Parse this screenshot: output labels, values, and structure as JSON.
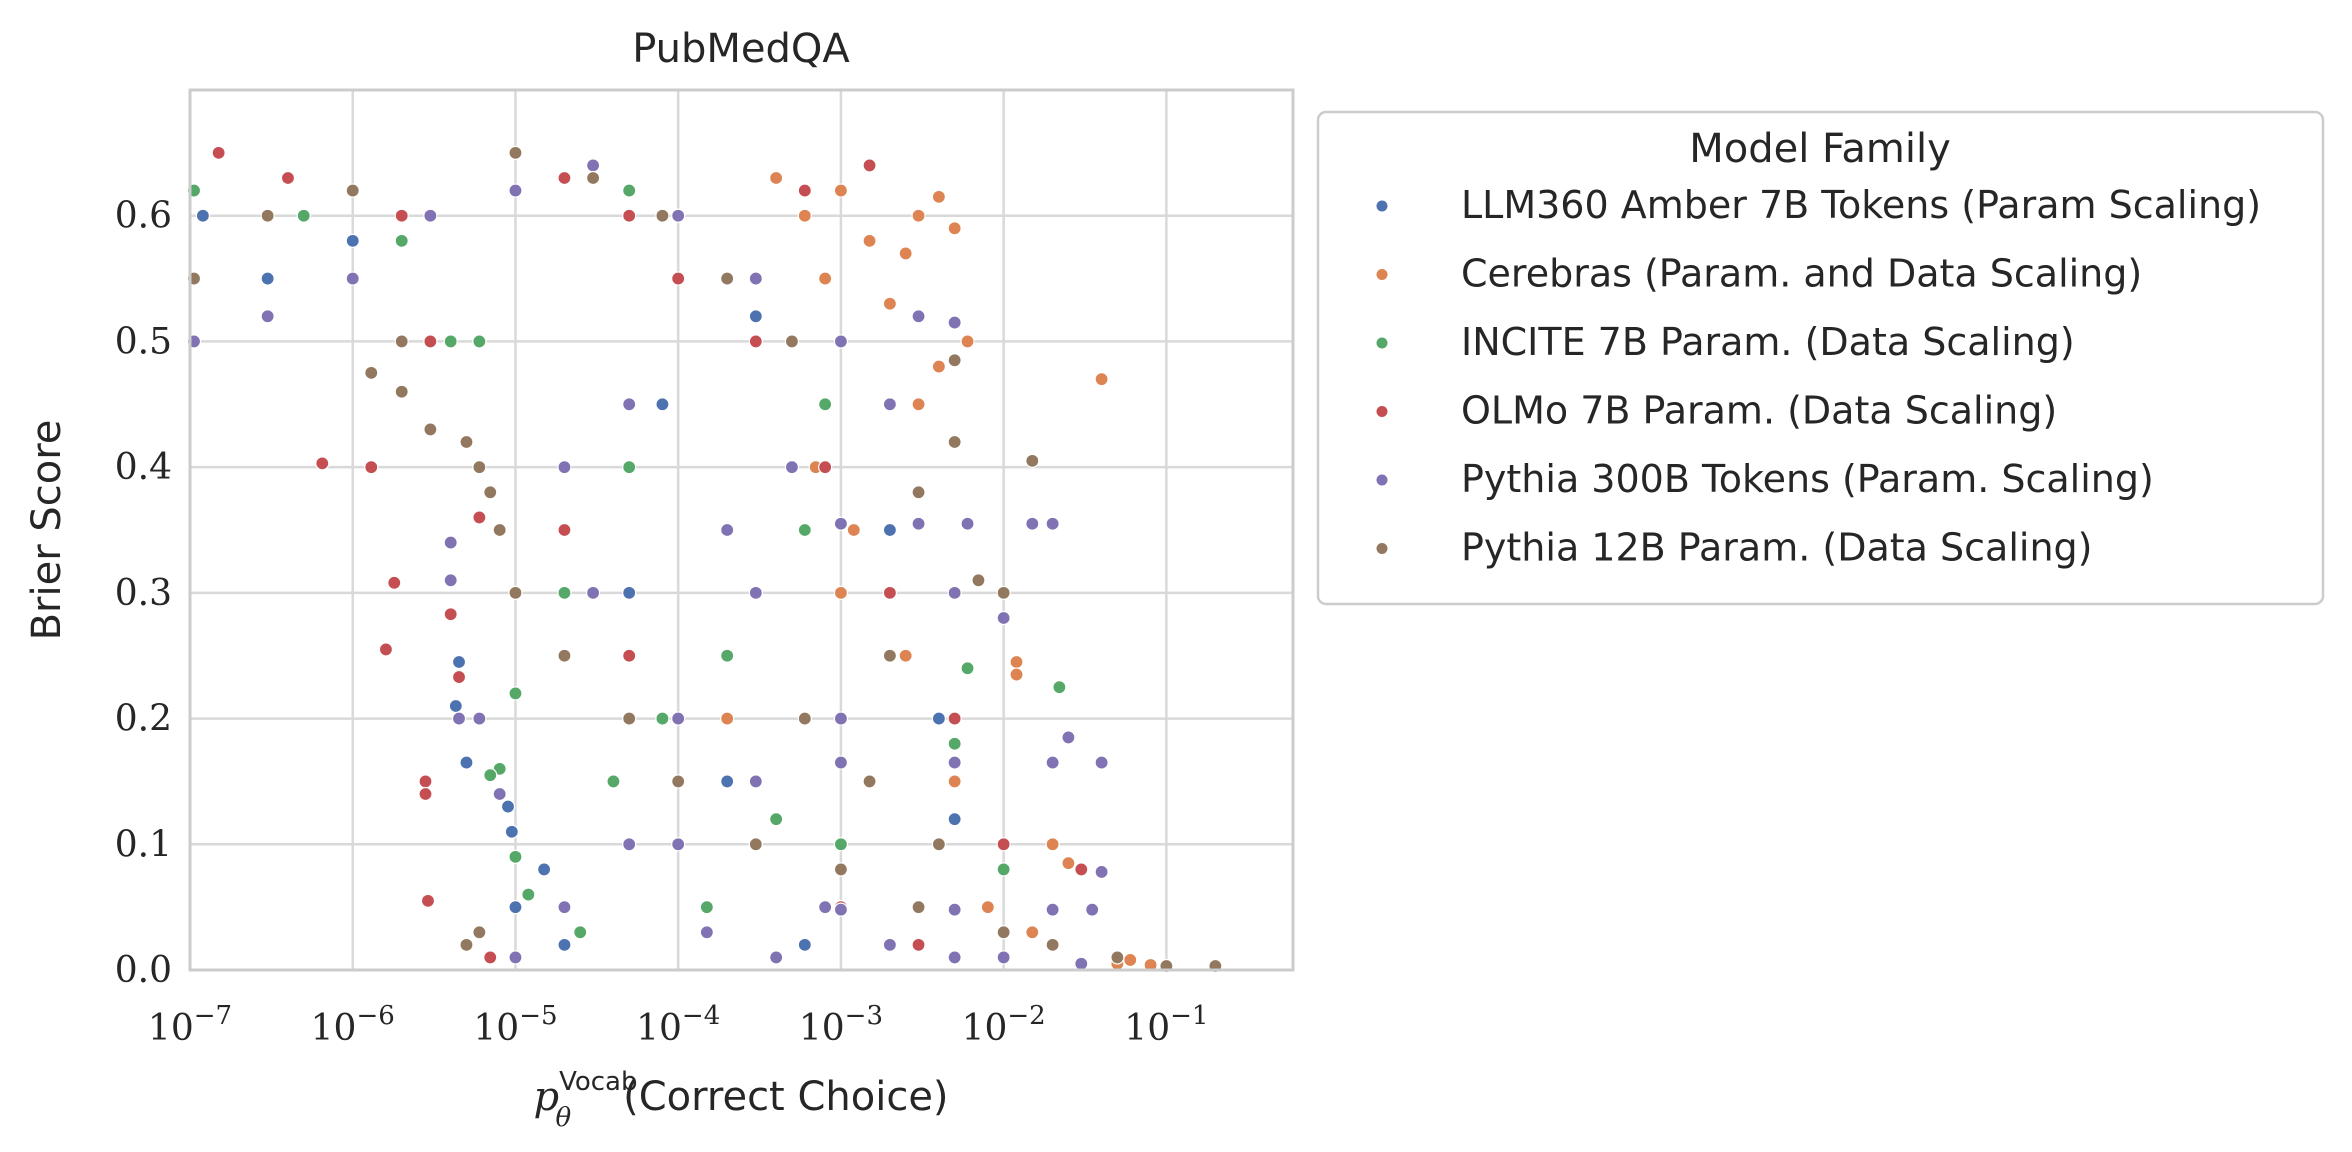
{
  "chart_data": {
    "type": "scatter",
    "title": "PubMedQA",
    "xlabel": "p_θ^Vocab(Correct Choice)",
    "xlabel_parts": {
      "main": "p",
      "sub": "θ",
      "sup": "Vocab",
      "rest": "(Correct Choice)"
    },
    "ylabel": "Brier Score",
    "xscale": "log",
    "xlim": [
      1e-07,
      0.6
    ],
    "ylim": [
      0.0,
      0.7
    ],
    "grid": true,
    "x_ticks": [
      {
        "value": 1e-07,
        "base": "10",
        "exp": "−7"
      },
      {
        "value": 1e-06,
        "base": "10",
        "exp": "−6"
      },
      {
        "value": 1e-05,
        "base": "10",
        "exp": "−5"
      },
      {
        "value": 0.0001,
        "base": "10",
        "exp": "−4"
      },
      {
        "value": 0.001,
        "base": "10",
        "exp": "−3"
      },
      {
        "value": 0.01,
        "base": "10",
        "exp": "−2"
      },
      {
        "value": 0.1,
        "base": "10",
        "exp": "−1"
      }
    ],
    "y_ticks": [
      {
        "value": 0.0,
        "label": "0.0"
      },
      {
        "value": 0.1,
        "label": "0.1"
      },
      {
        "value": 0.2,
        "label": "0.2"
      },
      {
        "value": 0.3,
        "label": "0.3"
      },
      {
        "value": 0.4,
        "label": "0.4"
      },
      {
        "value": 0.5,
        "label": "0.5"
      },
      {
        "value": 0.6,
        "label": "0.6"
      }
    ],
    "legend": {
      "title": "Model Family",
      "placement": "outside-right-top"
    },
    "series": [
      {
        "name": "LLM360 Amber 7B Tokens (Param Scaling)",
        "color": "#4c72b0",
        "points": [
          [
            1.2e-07,
            0.6
          ],
          [
            3e-07,
            0.55
          ],
          [
            1e-06,
            0.58
          ],
          [
            4.5e-06,
            0.245
          ],
          [
            4.3e-06,
            0.21
          ],
          [
            5e-06,
            0.165
          ],
          [
            9e-06,
            0.13
          ],
          [
            9.5e-06,
            0.11
          ],
          [
            1e-05,
            0.05
          ],
          [
            2e-05,
            0.02
          ],
          [
            5e-05,
            0.3
          ],
          [
            0.0002,
            0.15
          ],
          [
            0.001,
            0.08
          ],
          [
            0.002,
            0.35
          ],
          [
            0.005,
            0.12
          ],
          [
            0.0003,
            0.52
          ],
          [
            8e-05,
            0.45
          ],
          [
            1.5e-05,
            0.08
          ],
          [
            0.0006,
            0.02
          ],
          [
            0.004,
            0.2
          ]
        ]
      },
      {
        "name": "Cerebras (Param. and Data Scaling)",
        "color": "#dd8452",
        "points": [
          [
            0.004,
            0.615
          ],
          [
            0.003,
            0.6
          ],
          [
            0.005,
            0.59
          ],
          [
            0.0025,
            0.57
          ],
          [
            0.006,
            0.5
          ],
          [
            0.004,
            0.48
          ],
          [
            0.04,
            0.47
          ],
          [
            0.012,
            0.245
          ],
          [
            0.012,
            0.235
          ],
          [
            0.02,
            0.1
          ],
          [
            0.025,
            0.085
          ],
          [
            0.05,
            0.005
          ],
          [
            0.08,
            0.004
          ],
          [
            0.06,
            0.008
          ],
          [
            0.001,
            0.62
          ],
          [
            0.0015,
            0.58
          ],
          [
            0.0008,
            0.55
          ],
          [
            0.002,
            0.53
          ],
          [
            0.003,
            0.45
          ],
          [
            0.001,
            0.3
          ],
          [
            0.0002,
            0.2
          ],
          [
            0.005,
            0.15
          ],
          [
            0.008,
            0.05
          ],
          [
            0.015,
            0.03
          ],
          [
            0.003,
            0.02
          ],
          [
            0.0007,
            0.4
          ],
          [
            0.0012,
            0.35
          ],
          [
            0.0025,
            0.25
          ],
          [
            0.0006,
            0.6
          ],
          [
            0.0004,
            0.63
          ]
        ]
      },
      {
        "name": "INCITE 7B Param. (Data Scaling)",
        "color": "#55a868",
        "points": [
          [
            1e-07,
            0.62
          ],
          [
            5e-07,
            0.6
          ],
          [
            2e-06,
            0.58
          ],
          [
            4e-06,
            0.5
          ],
          [
            6e-06,
            0.5
          ],
          [
            8e-06,
            0.16
          ],
          [
            1e-05,
            0.09
          ],
          [
            1.2e-05,
            0.06
          ],
          [
            7e-06,
            0.155
          ],
          [
            0.022,
            0.225
          ],
          [
            0.006,
            0.24
          ],
          [
            1e-05,
            0.22
          ],
          [
            2e-05,
            0.3
          ],
          [
            5e-05,
            0.4
          ],
          [
            0.0002,
            0.25
          ],
          [
            0.001,
            0.1
          ],
          [
            0.003,
            0.05
          ],
          [
            0.0008,
            0.45
          ],
          [
            0.0003,
            0.55
          ],
          [
            0.0001,
            0.6
          ],
          [
            5e-05,
            0.62
          ],
          [
            0.005,
            0.18
          ],
          [
            0.01,
            0.08
          ],
          [
            0.002,
            0.3
          ],
          [
            0.0006,
            0.35
          ],
          [
            4e-05,
            0.15
          ],
          [
            0.00015,
            0.05
          ],
          [
            2.5e-05,
            0.03
          ],
          [
            8e-05,
            0.2
          ],
          [
            0.0004,
            0.12
          ]
        ]
      },
      {
        "name": "OLMo 7B Param. (Data Scaling)",
        "color": "#c44e52",
        "points": [
          [
            6.5e-07,
            0.403
          ],
          [
            1.3e-06,
            0.4
          ],
          [
            1.8e-06,
            0.308
          ],
          [
            1.6e-06,
            0.255
          ],
          [
            2.8e-06,
            0.15
          ],
          [
            2.8e-06,
            0.14
          ],
          [
            2.9e-06,
            0.055
          ],
          [
            4e-06,
            0.283
          ],
          [
            4.5e-06,
            0.233
          ],
          [
            6e-06,
            0.36
          ],
          [
            7e-06,
            0.38
          ],
          [
            7e-06,
            0.01
          ],
          [
            1.5e-07,
            0.65
          ],
          [
            4e-07,
            0.63
          ],
          [
            1e-06,
            0.62
          ],
          [
            2e-06,
            0.6
          ],
          [
            3e-06,
            0.5
          ],
          [
            1e-05,
            0.3
          ],
          [
            2e-05,
            0.35
          ],
          [
            5e-05,
            0.25
          ],
          [
            0.0001,
            0.15
          ],
          [
            0.0003,
            0.1
          ],
          [
            0.001,
            0.05
          ],
          [
            0.003,
            0.02
          ],
          [
            0.01,
            0.1
          ],
          [
            0.03,
            0.08
          ],
          [
            0.005,
            0.2
          ],
          [
            0.002,
            0.3
          ],
          [
            0.0008,
            0.4
          ],
          [
            0.0003,
            0.5
          ],
          [
            0.0001,
            0.55
          ],
          [
            5e-05,
            0.6
          ],
          [
            2e-05,
            0.63
          ],
          [
            0.0006,
            0.62
          ],
          [
            0.0015,
            0.64
          ]
        ]
      },
      {
        "name": "Pythia 300B Tokens (Param. Scaling)",
        "color": "#8172b3",
        "points": [
          [
            1e-07,
            0.5
          ],
          [
            3e-07,
            0.52
          ],
          [
            1e-06,
            0.55
          ],
          [
            3e-06,
            0.6
          ],
          [
            1e-05,
            0.62
          ],
          [
            3e-05,
            0.64
          ],
          [
            0.0001,
            0.6
          ],
          [
            0.0003,
            0.55
          ],
          [
            0.001,
            0.5
          ],
          [
            0.003,
            0.52
          ],
          [
            0.005,
            0.515
          ],
          [
            4e-06,
            0.34
          ],
          [
            4e-06,
            0.31
          ],
          [
            4.5e-06,
            0.2
          ],
          [
            6e-06,
            0.2
          ],
          [
            8e-06,
            0.14
          ],
          [
            1e-05,
            0.01
          ],
          [
            2e-05,
            0.05
          ],
          [
            5e-05,
            0.1
          ],
          [
            0.0001,
            0.2
          ],
          [
            0.0003,
            0.3
          ],
          [
            0.001,
            0.355
          ],
          [
            0.003,
            0.355
          ],
          [
            0.006,
            0.355
          ],
          [
            0.015,
            0.355
          ],
          [
            0.02,
            0.355
          ],
          [
            0.001,
            0.165
          ],
          [
            0.005,
            0.165
          ],
          [
            0.02,
            0.165
          ],
          [
            0.04,
            0.165
          ],
          [
            0.001,
            0.048
          ],
          [
            0.005,
            0.048
          ],
          [
            0.02,
            0.048
          ],
          [
            0.035,
            0.048
          ],
          [
            0.04,
            0.078
          ],
          [
            0.025,
            0.185
          ],
          [
            0.01,
            0.28
          ],
          [
            0.005,
            0.3
          ],
          [
            0.002,
            0.25
          ],
          [
            0.001,
            0.2
          ],
          [
            0.0003,
            0.15
          ],
          [
            0.0001,
            0.1
          ],
          [
            3e-05,
            0.3
          ],
          [
            2e-05,
            0.4
          ],
          [
            5e-05,
            0.45
          ],
          [
            0.0002,
            0.35
          ],
          [
            0.0005,
            0.4
          ],
          [
            0.002,
            0.45
          ],
          [
            0.0008,
            0.05
          ],
          [
            0.002,
            0.02
          ],
          [
            0.005,
            0.01
          ],
          [
            0.01,
            0.01
          ],
          [
            0.03,
            0.005
          ],
          [
            0.0004,
            0.01
          ],
          [
            0.00015,
            0.03
          ]
        ]
      },
      {
        "name": "Pythia 12B Param. (Data Scaling)",
        "color": "#937860",
        "points": [
          [
            1e-07,
            0.55
          ],
          [
            3e-07,
            0.6
          ],
          [
            1e-06,
            0.62
          ],
          [
            2e-06,
            0.5
          ],
          [
            1.3e-06,
            0.475
          ],
          [
            2e-06,
            0.46
          ],
          [
            3e-06,
            0.43
          ],
          [
            5e-06,
            0.42
          ],
          [
            6e-06,
            0.4
          ],
          [
            7e-06,
            0.38
          ],
          [
            8e-06,
            0.35
          ],
          [
            5e-06,
            0.02
          ],
          [
            6e-06,
            0.03
          ],
          [
            1e-05,
            0.3
          ],
          [
            2e-05,
            0.25
          ],
          [
            5e-05,
            0.2
          ],
          [
            0.0001,
            0.15
          ],
          [
            0.0003,
            0.1
          ],
          [
            0.001,
            0.08
          ],
          [
            0.003,
            0.05
          ],
          [
            0.01,
            0.03
          ],
          [
            0.015,
            0.405
          ],
          [
            0.01,
            0.3
          ],
          [
            0.007,
            0.31
          ],
          [
            0.005,
            0.42
          ],
          [
            0.005,
            0.485
          ],
          [
            0.003,
            0.38
          ],
          [
            0.02,
            0.02
          ],
          [
            0.05,
            0.01
          ],
          [
            0.2,
            0.0
          ],
          [
            0.1,
            0.002
          ],
          [
            0.0005,
            0.5
          ],
          [
            0.0002,
            0.55
          ],
          [
            8e-05,
            0.6
          ],
          [
            3e-05,
            0.63
          ],
          [
            1e-05,
            0.65
          ],
          [
            0.002,
            0.25
          ],
          [
            0.0006,
            0.2
          ],
          [
            0.0015,
            0.15
          ],
          [
            0.004,
            0.1
          ]
        ]
      }
    ]
  }
}
